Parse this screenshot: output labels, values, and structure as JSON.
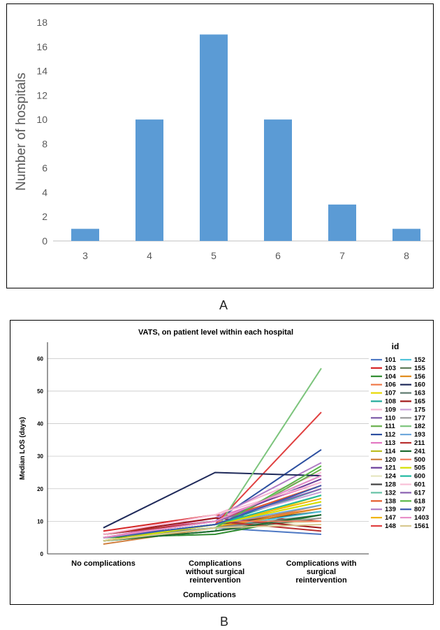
{
  "labels": {
    "panel_a": "A",
    "panel_b": "B"
  },
  "chart_data": [
    {
      "type": "bar",
      "title": "",
      "xlabel": "",
      "ylabel": "Number of hospitals",
      "categories": [
        "3",
        "4",
        "5",
        "6",
        "7",
        "8"
      ],
      "values": [
        1,
        10,
        17,
        10,
        3,
        1
      ],
      "ylim": [
        0,
        18
      ],
      "yticks": [
        0,
        2,
        4,
        6,
        8,
        10,
        12,
        14,
        16,
        18
      ],
      "grid": false,
      "bar_color": "#5b9bd5"
    },
    {
      "type": "line",
      "title": "VATS, on patient level within each hospital",
      "xlabel": "Complications",
      "ylabel": "Median LOS (days)",
      "categories": [
        [
          "No complications"
        ],
        [
          "Complications",
          "without surgical",
          "reintervention"
        ],
        [
          "Complications with",
          "surgical",
          "reintervention"
        ]
      ],
      "ylim": [
        0,
        65
      ],
      "yticks": [
        0,
        10,
        20,
        30,
        40,
        50,
        60
      ],
      "grid": true,
      "legend_title": "id",
      "legend_position": "right",
      "series": [
        {
          "name": "101",
          "color": "#4e79c4",
          "values": [
            5,
            8,
            6
          ]
        },
        {
          "name": "103",
          "color": "#d62728",
          "values": [
            7,
            12,
            10
          ]
        },
        {
          "name": "104",
          "color": "#2e8b2e",
          "values": [
            5,
            6,
            12
          ]
        },
        {
          "name": "106",
          "color": "#f07a4a",
          "values": [
            4,
            9,
            14
          ]
        },
        {
          "name": "107",
          "color": "#e8d800",
          "values": [
            4,
            8,
            18
          ]
        },
        {
          "name": "108",
          "color": "#1fa99a",
          "values": [
            5,
            9,
            20
          ]
        },
        {
          "name": "109",
          "color": "#f7b6d2",
          "values": [
            6,
            12,
            25
          ]
        },
        {
          "name": "110",
          "color": "#7b5aa6",
          "values": [
            5,
            10,
            24
          ]
        },
        {
          "name": "111",
          "color": "#6ab04c",
          "values": [
            4,
            8,
            26
          ]
        },
        {
          "name": "112",
          "color": "#2c4fa0",
          "values": [
            6,
            10,
            32
          ]
        },
        {
          "name": "113",
          "color": "#e377c2",
          "values": [
            5,
            11,
            22
          ]
        },
        {
          "name": "114",
          "color": "#bcbd22",
          "values": [
            4,
            9,
            16
          ]
        },
        {
          "name": "120",
          "color": "#d08040",
          "values": [
            3,
            8,
            15
          ]
        },
        {
          "name": "121",
          "color": "#6a3d9a",
          "values": [
            5,
            10,
            23
          ]
        },
        {
          "name": "124",
          "color": "#e6e6c0",
          "values": [
            4,
            8,
            10
          ]
        },
        {
          "name": "128",
          "color": "#404040",
          "values": [
            5,
            9,
            13
          ]
        },
        {
          "name": "132",
          "color": "#66c2a5",
          "values": [
            4,
            7,
            12
          ]
        },
        {
          "name": "138",
          "color": "#e45a2a",
          "values": [
            5,
            10,
            21
          ]
        },
        {
          "name": "139",
          "color": "#b07cc6",
          "values": [
            6,
            11,
            28
          ]
        },
        {
          "name": "147",
          "color": "#f0b400",
          "values": [
            4,
            9,
            17
          ]
        },
        {
          "name": "148",
          "color": "#e04040",
          "values": [
            5,
            9,
            43.5
          ]
        },
        {
          "name": "152",
          "color": "#4fc3d9",
          "values": [
            5,
            8,
            13
          ]
        },
        {
          "name": "155",
          "color": "#607d5a",
          "values": [
            4,
            7,
            11
          ]
        },
        {
          "name": "156",
          "color": "#e08a1a",
          "values": [
            4,
            8,
            14
          ]
        },
        {
          "name": "160",
          "color": "#1f2a5a",
          "values": [
            8,
            25,
            24
          ]
        },
        {
          "name": "163",
          "color": "#5e7a6e",
          "values": [
            5,
            8,
            12
          ]
        },
        {
          "name": "165",
          "color": "#a01818",
          "values": [
            6,
            11,
            8
          ]
        },
        {
          "name": "175",
          "color": "#c8a0d8",
          "values": [
            5,
            10,
            19
          ]
        },
        {
          "name": "177",
          "color": "#9a9a9a",
          "values": [
            4,
            8,
            11
          ]
        },
        {
          "name": "182",
          "color": "#7cc47c",
          "values": [
            4,
            7,
            57
          ]
        },
        {
          "name": "193",
          "color": "#6fa8dc",
          "values": [
            5,
            9,
            15
          ]
        },
        {
          "name": "211",
          "color": "#b83030",
          "values": [
            6,
            10,
            7
          ]
        },
        {
          "name": "241",
          "color": "#1e6b30",
          "values": [
            4,
            7,
            12
          ]
        },
        {
          "name": "500",
          "color": "#f08060",
          "values": [
            5,
            10,
            10
          ]
        },
        {
          "name": "505",
          "color": "#d4e000",
          "values": [
            4,
            9,
            16
          ]
        },
        {
          "name": "600",
          "color": "#20b8a0",
          "values": [
            5,
            9,
            18
          ]
        },
        {
          "name": "601",
          "color": "#f9c0d8",
          "values": [
            6,
            12,
            22
          ]
        },
        {
          "name": "617",
          "color": "#8a60b0",
          "values": [
            5,
            10,
            20
          ]
        },
        {
          "name": "618",
          "color": "#58b848",
          "values": [
            4,
            8,
            27
          ]
        },
        {
          "name": "807",
          "color": "#3a58b0",
          "values": [
            5,
            9,
            21
          ]
        },
        {
          "name": "1403",
          "color": "#e890c8",
          "values": [
            5,
            10,
            24
          ]
        },
        {
          "name": "1561",
          "color": "#d8c890",
          "values": [
            4,
            8,
            9
          ]
        }
      ]
    }
  ]
}
